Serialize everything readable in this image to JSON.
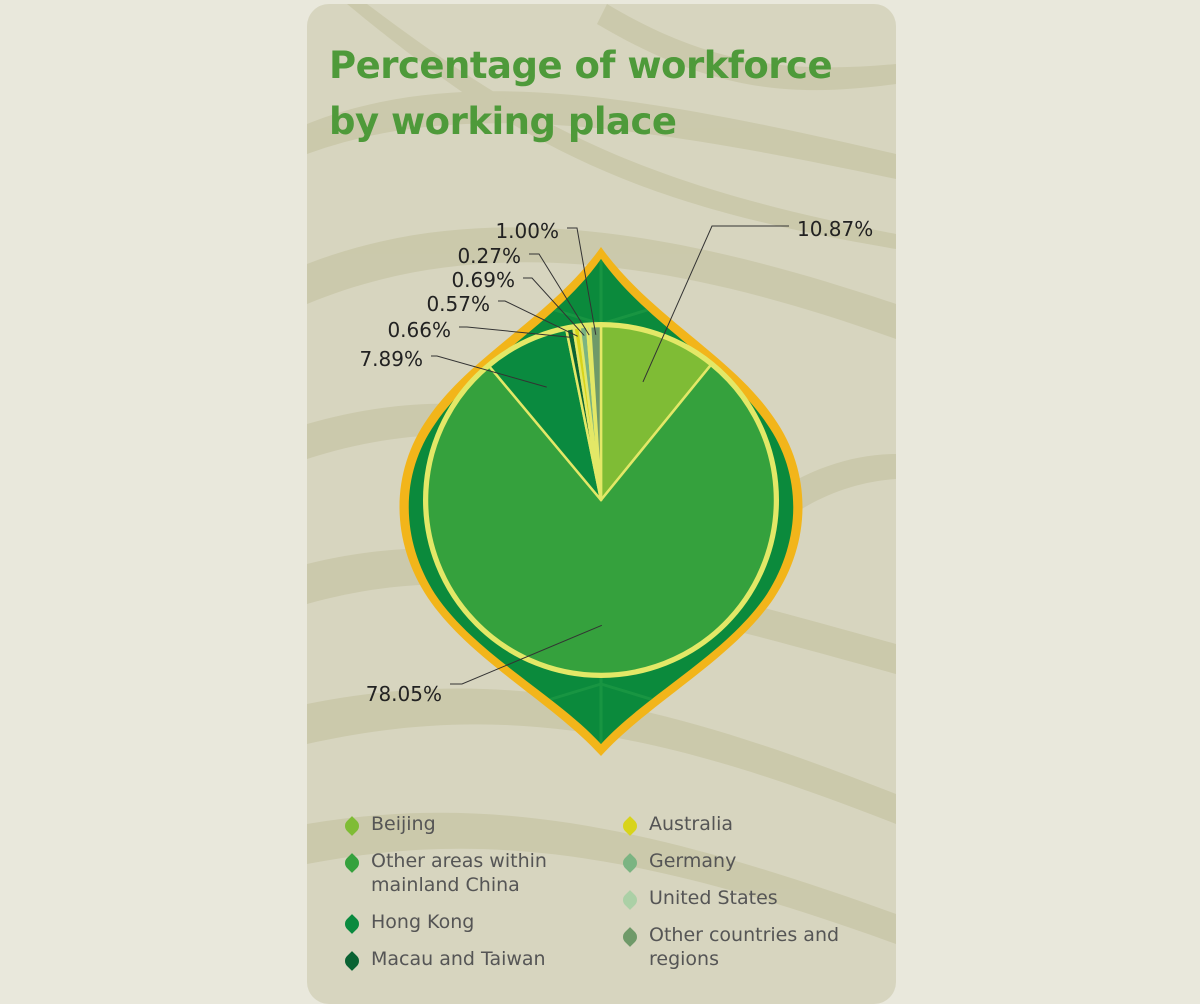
{
  "title": "Percentage of workforce\nby working place",
  "colors": {
    "page_bg": "#e9e8dc",
    "card_bg": "#d7d5bf",
    "leaf_outline": "#f2b51a",
    "leaf_fill": "#0b8a3c",
    "slice_edge": "#e3e867",
    "title": "#4e9a3a"
  },
  "chart_data": {
    "type": "pie",
    "shape": "leaf",
    "unit": "%",
    "slices": [
      {
        "label": "Beijing",
        "value": 10.87,
        "display": "10.87%",
        "color": "#7fbc35"
      },
      {
        "label": "Other areas within mainland China",
        "value": 78.05,
        "display": "78.05%",
        "color": "#35a13d"
      },
      {
        "label": "Hong Kong",
        "value": 7.89,
        "display": "7.89%",
        "color": "#0a8a3f"
      },
      {
        "label": "Macau and Taiwan",
        "value": 0.66,
        "display": "0.66%",
        "color": "#0a6233"
      },
      {
        "label": "Australia",
        "value": 0.57,
        "display": "0.57%",
        "color": "#d8d41b"
      },
      {
        "label": "Germany",
        "value": 0.69,
        "display": "0.69%",
        "color": "#7bb482"
      },
      {
        "label": "United States",
        "value": 0.27,
        "display": "0.27%",
        "color": "#abd0a6"
      },
      {
        "label": "Other countries and regions",
        "value": 1.0,
        "display": "1.00%",
        "color": "#6f9a69"
      }
    ]
  },
  "legend": {
    "items": [
      {
        "label": "Beijing",
        "color": "#7fbc35"
      },
      {
        "label": "Other areas within\nmainland China",
        "color": "#35a13d"
      },
      {
        "label": "Hong Kong",
        "color": "#0a8a3f"
      },
      {
        "label": "Macau and Taiwan",
        "color": "#0a6233"
      },
      {
        "label": "Australia",
        "color": "#d8d41b"
      },
      {
        "label": "Germany",
        "color": "#7bb482"
      },
      {
        "label": "United States",
        "color": "#abd0a6"
      },
      {
        "label": "Other countries and\nregions",
        "color": "#6f9a69"
      }
    ]
  }
}
